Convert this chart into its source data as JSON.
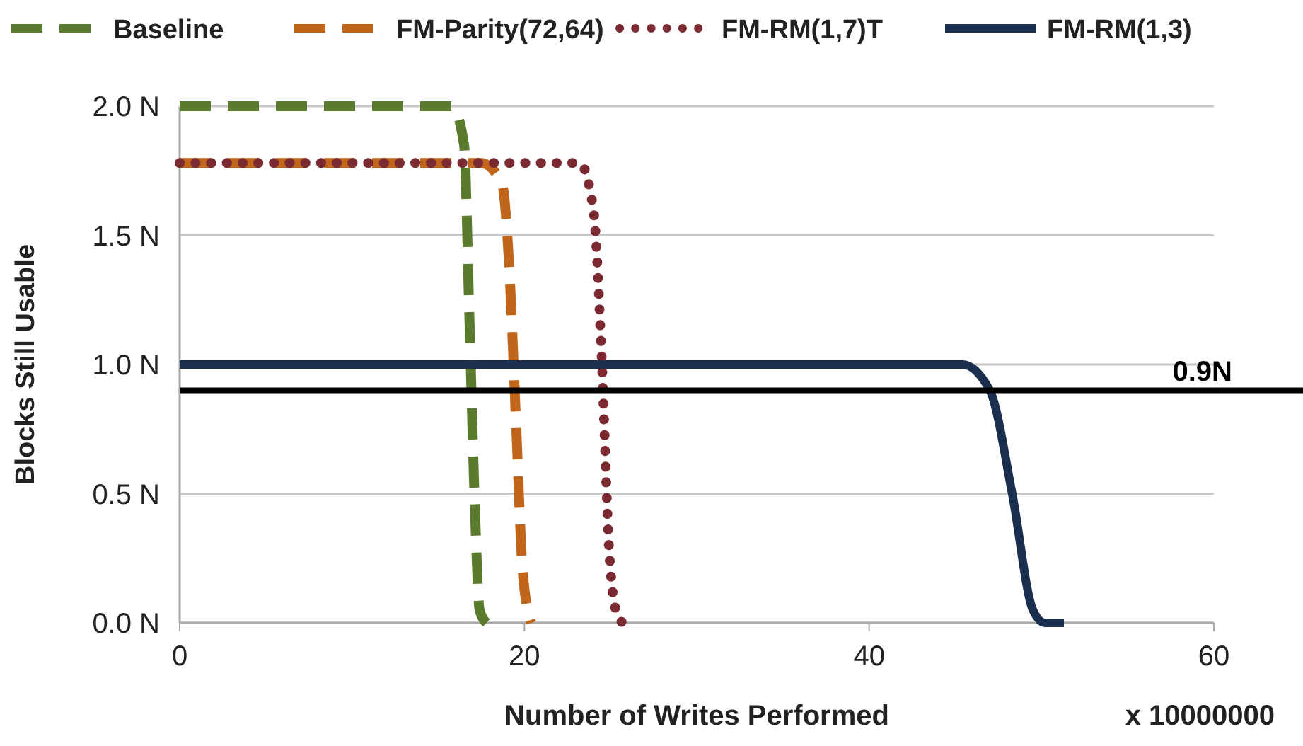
{
  "chart_data": {
    "type": "line",
    "xlabel": "Number of Writes Performed",
    "ylabel": "Blocks Still Usable",
    "xlim": [
      0,
      60
    ],
    "xticks": [
      0,
      20,
      40,
      60
    ],
    "ylim": [
      0,
      2
    ],
    "yticks": [
      {
        "value": 0,
        "label": "0.0 N"
      },
      {
        "value": 0.5,
        "label": "0.5 N"
      },
      {
        "value": 1,
        "label": "1.0 N"
      },
      {
        "value": 1.5,
        "label": "1.5 N"
      },
      {
        "value": 2,
        "label": "2.0 N"
      }
    ],
    "grid": "y",
    "legend": "top",
    "marker": "none",
    "series": [
      {
        "name": "Baseline",
        "color": "#5a7a2e",
        "line_style": "dashed",
        "x": [
          0,
          15.8,
          16.5,
          16.8,
          17.1,
          17.4,
          17.8
        ],
        "values": [
          2,
          2,
          1.85,
          1.2,
          0.5,
          0.05,
          0
        ]
      },
      {
        "name": "FM-Parity(72,64)",
        "color": "#c0651a",
        "line_style": "dashed",
        "x": [
          0,
          17.5,
          18.7,
          19.1,
          19.5,
          19.9,
          20.4
        ],
        "values": [
          1.78,
          1.78,
          1.7,
          1.4,
          0.8,
          0.2,
          0
        ]
      },
      {
        "name": "FM-RM(1,7)T",
        "color": "#7a2a30",
        "line_style": "dotted",
        "x": [
          0,
          23.2,
          24,
          24.5,
          24.9,
          25.3,
          25.7
        ],
        "values": [
          1.78,
          1.78,
          1.6,
          1,
          0.3,
          0.05,
          0
        ]
      },
      {
        "name": "FM-RM(1,3)",
        "color": "#1a2f4f",
        "line_style": "solid",
        "x": [
          0,
          45.4,
          47,
          48.3,
          49.5,
          50.2,
          51.3
        ],
        "values": [
          1,
          1,
          0.9,
          0.5,
          0.05,
          0,
          0
        ]
      }
    ],
    "ref_lines": [
      {
        "axis": "y",
        "value": 0.9,
        "label": "0.9N",
        "color": "#000000"
      }
    ],
    "annotations": [
      "x 10000000"
    ]
  }
}
